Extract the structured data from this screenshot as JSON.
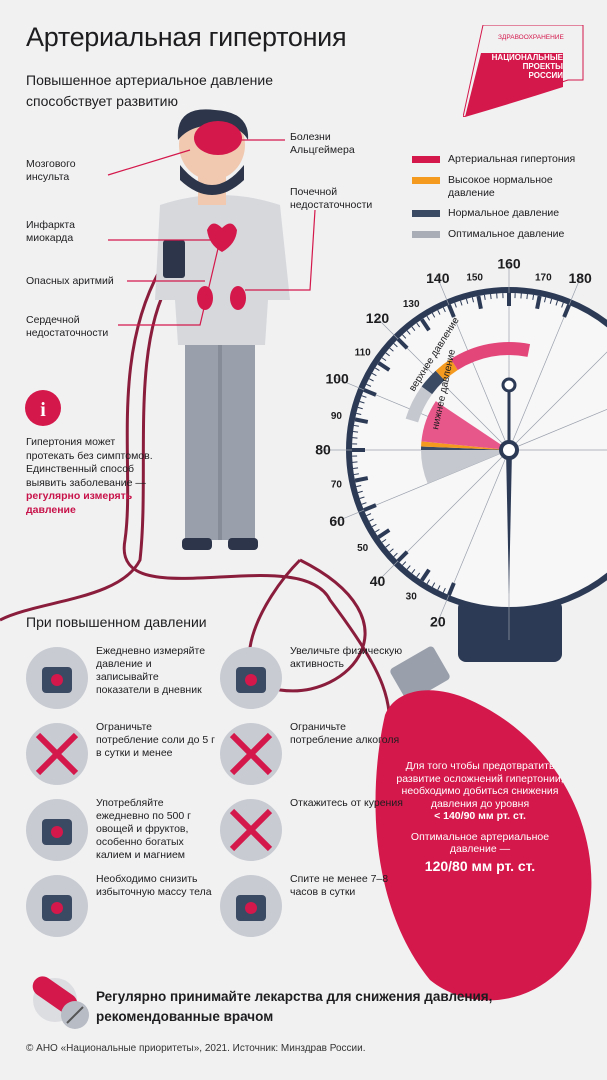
{
  "title": "Артериальная гипертония",
  "subtitle": [
    "Повышенное артериальное давление",
    "способствует развитию"
  ],
  "logo": {
    "top": "ЗДРАВООХРАНЕНИЕ",
    "lines": [
      "НАЦИОНАЛЬНЫЕ",
      "ПРОЕКТЫ",
      "РОССИИ"
    ]
  },
  "diseases": {
    "stroke": [
      "Мозгового",
      "инсульта"
    ],
    "infarct": [
      "Инфаркта",
      "миокарда"
    ],
    "arrhythmia": "Опасных аритмий",
    "heart_failure": [
      "Сердечной",
      "недостаточности"
    ],
    "alzheimer": [
      "Болезни",
      "Альцгеймера"
    ],
    "kidney": [
      "Почечной",
      "недостаточности"
    ]
  },
  "legend": [
    {
      "label": "Артериальная гипертония",
      "color": "#d4184b"
    },
    {
      "label": "Высокое нормальное давление",
      "color": "#f39a1f"
    },
    {
      "label": "Нормальное давление",
      "color": "#3b4a63"
    },
    {
      "label": "Оптимальное давление",
      "color": "#a9adb6"
    }
  ],
  "gauge": {
    "major_labels": [
      "20",
      "40",
      "60",
      "80",
      "100",
      "120",
      "140",
      "160",
      "180"
    ],
    "minor_labels": [
      "30",
      "50",
      "70",
      "90",
      "110",
      "130",
      "150",
      "170"
    ],
    "upper_label": "верхнее давление",
    "lower_label": "нижнее давление"
  },
  "tip": {
    "icon": "info-icon",
    "text": "Гипертония может протекать без симптомов. Единственный способ выявить заболевание —",
    "highlight": "регулярно измерять давление"
  },
  "section_title": "При повышенном давлении",
  "advice": [
    {
      "icon": "tonometer-icon",
      "text": "Ежедневно измеряйте давление и записывайте показатели в дневник"
    },
    {
      "icon": "dumbbell-icon",
      "text": "Увеличьте физическую активность"
    },
    {
      "icon": "no-salt-icon",
      "text": "Ограничьте потребление соли до 5 г в сутки и менее"
    },
    {
      "icon": "no-alcohol-icon",
      "text": "Ограничьте потребление алкоголя"
    },
    {
      "icon": "vegetables-icon",
      "text": "Употребляйте ежедневно по 500 г овощей и фруктов, особенно богатых калием и магнием"
    },
    {
      "icon": "no-smoking-icon",
      "text": "Откажитесь от курения"
    },
    {
      "icon": "scales-icon",
      "text": "Необходимо снизить избыточную массу тела"
    },
    {
      "icon": "sleep-icon",
      "text": "Спите не менее 7–8 часов в сутки"
    }
  ],
  "bulb": {
    "text": "Для того чтобы предотвратить развитие осложнений гипертонии, необходимо добиться снижения давления до уровня",
    "target": "< 140/90 мм рт. ст.",
    "optimal_label": "Оптимальное артериальное давление —",
    "optimal_value": "120/80 мм рт. ст."
  },
  "medication": "Регулярно принимайте лекарства для снижения давления, рекомендованные врачом",
  "copyright": "© АНО «Национальные приоритеты», 2021. Источник: Минздрав России."
}
